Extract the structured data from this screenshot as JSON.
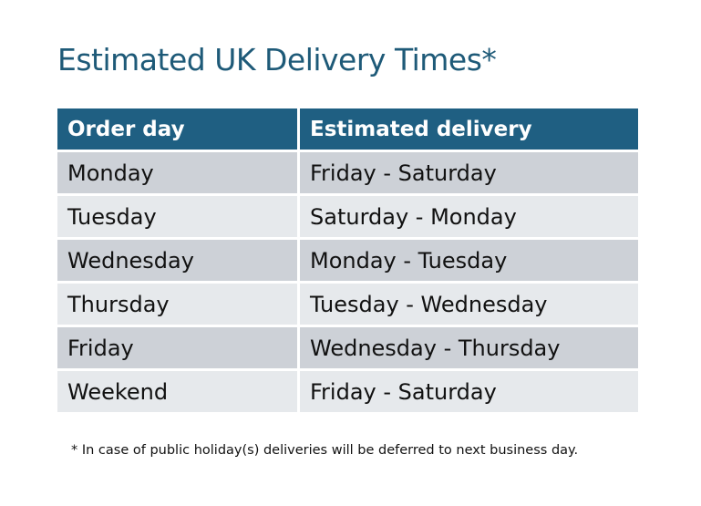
{
  "title": "Estimated UK Delivery Times*",
  "table": {
    "headers": [
      "Order day",
      "Estimated delivery"
    ],
    "rows": [
      [
        "Monday",
        "Friday - Saturday"
      ],
      [
        "Tuesday",
        "Saturday - Monday"
      ],
      [
        "Wednesday",
        "Monday - Tuesday"
      ],
      [
        "Thursday",
        "Tuesday - Wednesday"
      ],
      [
        "Friday",
        "Wednesday - Thursday"
      ],
      [
        "Weekend",
        "Friday - Saturday"
      ]
    ]
  },
  "footnote": "* In case of public holiday(s) deliveries will be deferred to next business day.",
  "colors": {
    "header": "#1f5f82",
    "title": "#1e5a78",
    "row_dark": "#cdd1d7",
    "row_light": "#e6e9ec"
  }
}
